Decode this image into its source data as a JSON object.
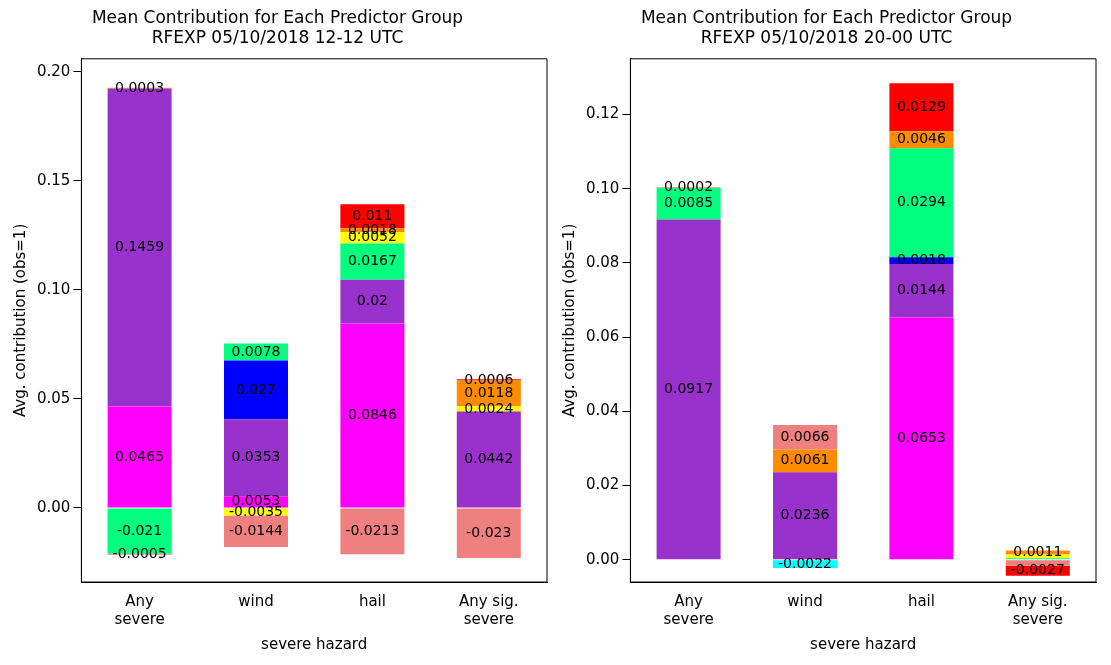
{
  "chart_data": [
    {
      "type": "bar",
      "stacked": true,
      "title": "Mean Contribution for Each Predictor Group",
      "subtitle": "RFEXP 05/10/2018 12-12 UTC",
      "xlabel": "severe hazard",
      "ylabel": "Avg. contribution (obs=1)",
      "categories": [
        "Any\nsevere",
        "wind",
        "hail",
        "Any sig.\nsevere"
      ],
      "ylim": [
        -0.034,
        0.206
      ],
      "yticks": [
        {
          "value": 0,
          "label": "0.00"
        },
        {
          "value": 0.05,
          "label": "0.05"
        },
        {
          "value": 0.1,
          "label": "0.10"
        },
        {
          "value": 0.15,
          "label": "0.15"
        },
        {
          "value": 0.2,
          "label": "0.20"
        }
      ],
      "grid": false,
      "legend": false,
      "data_labels": true,
      "series": [
        {
          "color": "#ff00ff",
          "values": [
            0.0465,
            0.0053,
            0.0846,
            null
          ]
        },
        {
          "color": "#9932cc",
          "values": [
            0.1459,
            0.0353,
            0.02,
            0.0442
          ]
        },
        {
          "color": "#0000ff",
          "values": [
            null,
            0.027,
            null,
            null
          ]
        },
        {
          "color": "#00ff7f",
          "values": [
            -0.021,
            0.0078,
            0.0167,
            null
          ]
        },
        {
          "color": "#ffff00",
          "values": [
            null,
            -0.0035,
            0.0052,
            0.0024
          ]
        },
        {
          "color": "#ff8c00",
          "values": [
            0.0003,
            null,
            0.0018,
            0.0118
          ]
        },
        {
          "color": "#ff0000",
          "values": [
            null,
            null,
            0.011,
            0.0006
          ]
        },
        {
          "color": "#f08080",
          "values": [
            -0.0005,
            -0.0144,
            -0.0213,
            -0.023
          ]
        }
      ]
    },
    {
      "type": "bar",
      "stacked": true,
      "title": "Mean Contribution for Each Predictor Group",
      "subtitle": "RFEXP 05/10/2018 20-00 UTC",
      "xlabel": "severe hazard",
      "ylabel": "Avg. contribution (obs=1)",
      "categories": [
        "Any\nsevere",
        "wind",
        "hail",
        "Any sig.\nsevere"
      ],
      "ylim": [
        -0.006,
        0.135
      ],
      "yticks": [
        {
          "value": 0,
          "label": "0.00"
        },
        {
          "value": 0.02,
          "label": "0.02"
        },
        {
          "value": 0.04,
          "label": "0.04"
        },
        {
          "value": 0.06,
          "label": "0.06"
        },
        {
          "value": 0.08,
          "label": "0.08"
        },
        {
          "value": 0.1,
          "label": "0.10"
        },
        {
          "value": 0.12,
          "label": "0.12"
        }
      ],
      "grid": false,
      "legend": false,
      "series": [
        {
          "color": "#ff00ff",
          "values": [
            null,
            null,
            0.0653,
            null
          ],
          "value_labels": [
            null,
            null,
            "0.0653",
            null
          ]
        },
        {
          "color": "#9932cc",
          "values": [
            0.0917,
            0.0236,
            0.0144,
            null
          ],
          "value_labels": [
            "0.0917",
            "0.0236",
            "0.0144",
            null
          ]
        },
        {
          "color": "#0000ff",
          "values": [
            null,
            null,
            0.0018,
            null
          ],
          "value_labels": [
            null,
            null,
            "0.0018",
            null
          ]
        },
        {
          "color": "#00ff7f",
          "values": [
            0.0085,
            null,
            0.0294,
            0.0004
          ],
          "value_labels": [
            "0.0085",
            null,
            "0.0294",
            null
          ]
        },
        {
          "color": "#ffff00",
          "values": [
            null,
            null,
            null,
            0.001
          ],
          "value_labels": [
            null,
            null,
            null,
            null
          ]
        },
        {
          "color": "#ff8c00",
          "values": [
            null,
            0.0061,
            0.0046,
            0.0011
          ],
          "value_labels": [
            null,
            "0.0061",
            "0.0046",
            "0.0011"
          ]
        },
        {
          "color": "#ff0000",
          "values": [
            null,
            null,
            0.0129,
            null
          ],
          "value_labels": [
            null,
            null,
            "0.0129",
            null
          ]
        },
        {
          "color": "#f08080",
          "values": [
            0.0002,
            0.0066,
            null,
            -0.0016
          ],
          "value_labels": [
            "0.0002",
            "0.0066",
            null,
            null
          ]
        },
        {
          "color": "#00ffff",
          "values": [
            null,
            -0.0022,
            null,
            null
          ],
          "value_labels": [
            null,
            "-0.0022",
            null,
            null
          ]
        },
        {
          "color": "#ff0000",
          "values": [
            null,
            null,
            null,
            -0.0027
          ],
          "value_labels": [
            null,
            null,
            null,
            "-0.0027"
          ]
        }
      ]
    }
  ]
}
